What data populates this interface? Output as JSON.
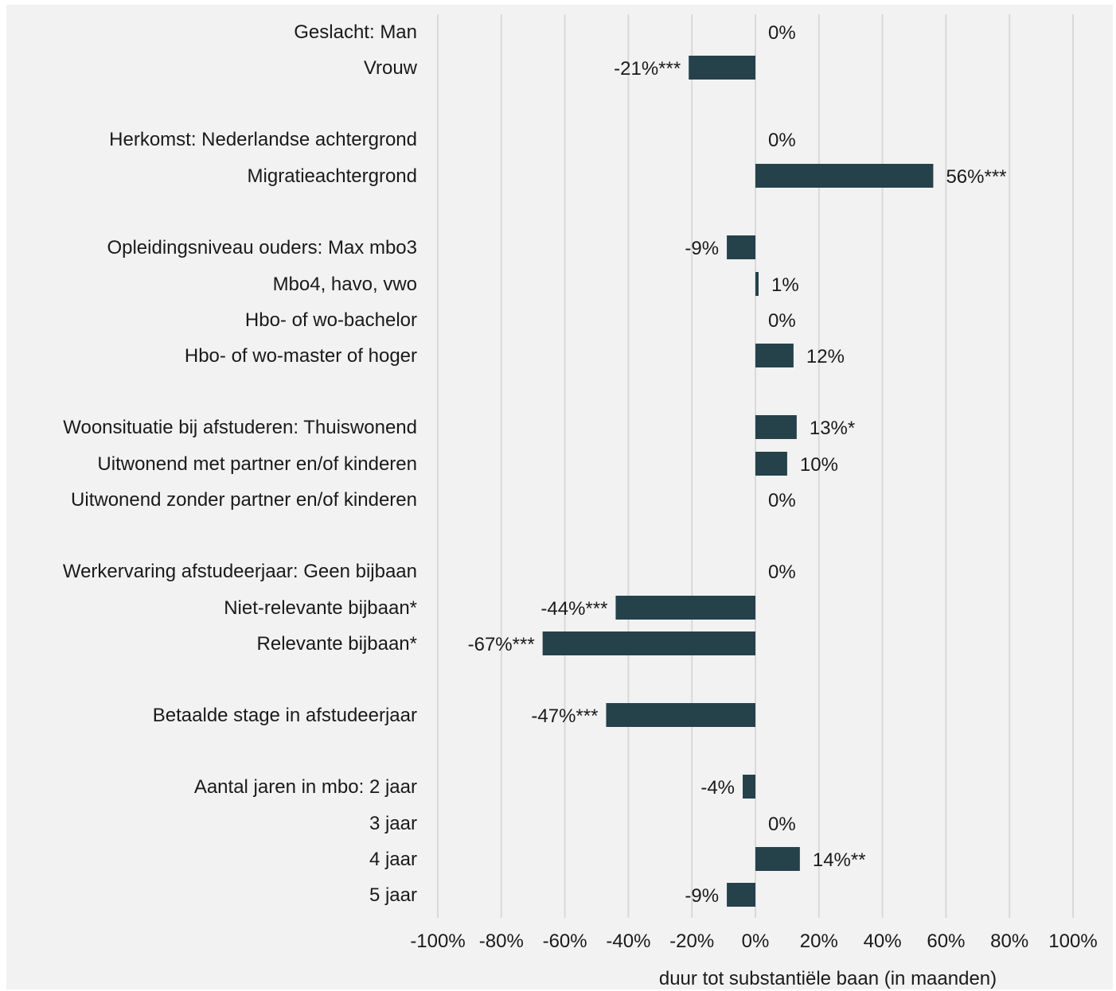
{
  "chart_data": {
    "type": "bar",
    "orientation": "horizontal",
    "xlabel": "duur tot substantiële baan (in maanden)",
    "xlim": [
      -100,
      100
    ],
    "x_ticks": [
      -100,
      -80,
      -60,
      -40,
      -20,
      0,
      20,
      40,
      60,
      80,
      100
    ],
    "tick_suffix": "%",
    "grid": true,
    "bar_color": "#25414a",
    "background": "#f2f2f2",
    "gridline_color": "#d9d9d9",
    "categories": [
      {
        "label": "Geslacht: Man",
        "value": 0,
        "text": "0%"
      },
      {
        "label": "Vrouw",
        "value": -21,
        "text": "-21%***"
      },
      {
        "label": "Herkomst: Nederlandse achtergrond",
        "value": 0,
        "text": "0%"
      },
      {
        "label": "Migratieachtergrond",
        "value": 56,
        "text": "56%***"
      },
      {
        "label": "Opleidingsniveau ouders: Max mbo3",
        "value": -9,
        "text": "-9%"
      },
      {
        "label": "Mbo4, havo, vwo",
        "value": 1,
        "text": "1%"
      },
      {
        "label": "Hbo- of wo-bachelor",
        "value": 0,
        "text": "0%"
      },
      {
        "label": "Hbo- of wo-master of hoger",
        "value": 12,
        "text": "12%"
      },
      {
        "label": "Woonsituatie bij afstuderen: Thuiswonend",
        "value": 13,
        "text": "13%*"
      },
      {
        "label": "Uitwonend met partner en/of kinderen",
        "value": 10,
        "text": "10%"
      },
      {
        "label": "Uitwonend zonder partner en/of kinderen",
        "value": 0,
        "text": "0%"
      },
      {
        "label": "Werkervaring afstudeerjaar: Geen bijbaan",
        "value": 0,
        "text": "0%"
      },
      {
        "label": "Niet-relevante bijbaan*",
        "value": -44,
        "text": "-44%***"
      },
      {
        "label": "Relevante bijbaan*",
        "value": -67,
        "text": "-67%***"
      },
      {
        "label": "Betaalde stage in afstudeerjaar",
        "value": -47,
        "text": "-47%***"
      },
      {
        "label": "Aantal jaren in mbo: 2 jaar",
        "value": -4,
        "text": "-4%"
      },
      {
        "label": "3 jaar",
        "value": 0,
        "text": "0%"
      },
      {
        "label": "4 jaar",
        "value": 14,
        "text": "14%**"
      },
      {
        "label": "5 jaar",
        "value": -9,
        "text": "-9%"
      }
    ]
  }
}
